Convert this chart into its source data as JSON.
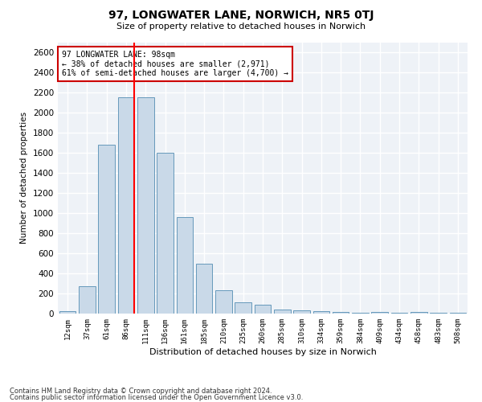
{
  "title": "97, LONGWATER LANE, NORWICH, NR5 0TJ",
  "subtitle": "Size of property relative to detached houses in Norwich",
  "xlabel": "Distribution of detached houses by size in Norwich",
  "ylabel": "Number of detached properties",
  "categories": [
    "12sqm",
    "37sqm",
    "61sqm",
    "86sqm",
    "111sqm",
    "136sqm",
    "161sqm",
    "185sqm",
    "210sqm",
    "235sqm",
    "260sqm",
    "285sqm",
    "310sqm",
    "334sqm",
    "359sqm",
    "384sqm",
    "409sqm",
    "434sqm",
    "458sqm",
    "483sqm",
    "508sqm"
  ],
  "values": [
    25,
    270,
    1680,
    2150,
    2150,
    1600,
    960,
    500,
    235,
    115,
    90,
    40,
    35,
    25,
    20,
    10,
    15,
    5,
    20,
    5,
    5
  ],
  "bar_color": "#c9d9e8",
  "bar_edge_color": "#6699bb",
  "red_line_index": 3,
  "annotation_text": "97 LONGWATER LANE: 98sqm\n← 38% of detached houses are smaller (2,971)\n61% of semi-detached houses are larger (4,700) →",
  "annotation_box_color": "#ffffff",
  "annotation_box_edge_color": "#cc0000",
  "ylim": [
    0,
    2700
  ],
  "yticks": [
    0,
    200,
    400,
    600,
    800,
    1000,
    1200,
    1400,
    1600,
    1800,
    2000,
    2200,
    2400,
    2600
  ],
  "background_color": "#eef2f7",
  "grid_color": "#ffffff",
  "footer_line1": "Contains HM Land Registry data © Crown copyright and database right 2024.",
  "footer_line2": "Contains public sector information licensed under the Open Government Licence v3.0."
}
